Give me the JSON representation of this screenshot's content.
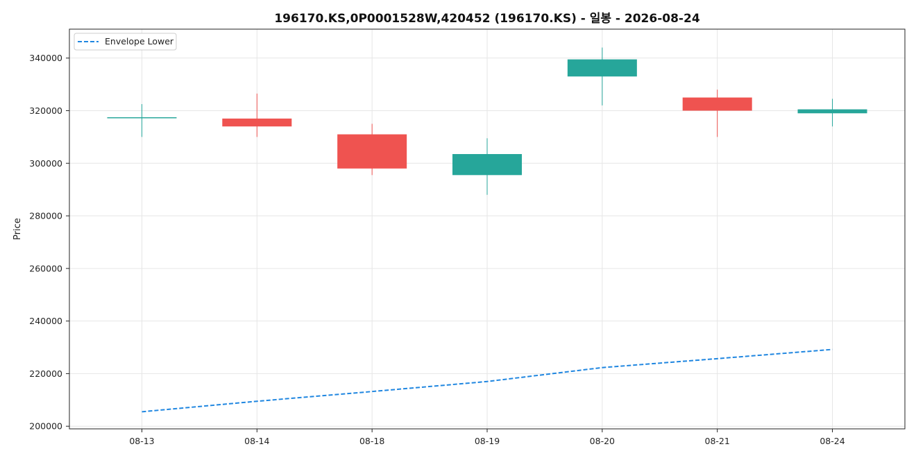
{
  "chart_data": {
    "type": "candlestick",
    "title": "196170.KS,0P0001528W,420452 (196170.KS) - 일봉 - 2026-08-24",
    "xlabel": "",
    "ylabel": "Price",
    "categories": [
      "08-13",
      "08-14",
      "08-18",
      "08-19",
      "08-20",
      "08-21",
      "08-24"
    ],
    "ylim": [
      199000,
      351000
    ],
    "yticks": [
      200000,
      220000,
      240000,
      260000,
      280000,
      300000,
      320000,
      340000
    ],
    "ytick_labels": [
      "200000",
      "220000",
      "240000",
      "260000",
      "280000",
      "300000",
      "320000",
      "340000"
    ],
    "grid": true,
    "legend_position": "top-left",
    "candles": [
      {
        "date": "08-13",
        "open": 317500,
        "high": 322500,
        "low": 310000,
        "close": 317500
      },
      {
        "date": "08-14",
        "open": 317000,
        "high": 326500,
        "low": 310000,
        "close": 314000
      },
      {
        "date": "08-18",
        "open": 311000,
        "high": 315000,
        "low": 295500,
        "close": 298000
      },
      {
        "date": "08-19",
        "open": 295500,
        "high": 309500,
        "low": 288000,
        "close": 303500
      },
      {
        "date": "08-20",
        "open": 333000,
        "high": 344000,
        "low": 322000,
        "close": 339500
      },
      {
        "date": "08-21",
        "open": 325000,
        "high": 328000,
        "low": 310000,
        "close": 320000
      },
      {
        "date": "08-24",
        "open": 319000,
        "high": 324500,
        "low": 314000,
        "close": 320500
      }
    ],
    "series": [
      {
        "name": "Envelope Lower",
        "style": "dashed",
        "color": "#1f86e0",
        "values": [
          205500,
          209500,
          213200,
          217000,
          222300,
          225700,
          229200
        ]
      }
    ],
    "colors": {
      "up": "#26a69a",
      "down": "#ef5350",
      "envelope": "#1f86e0",
      "grid": "#e6e6e6"
    }
  }
}
